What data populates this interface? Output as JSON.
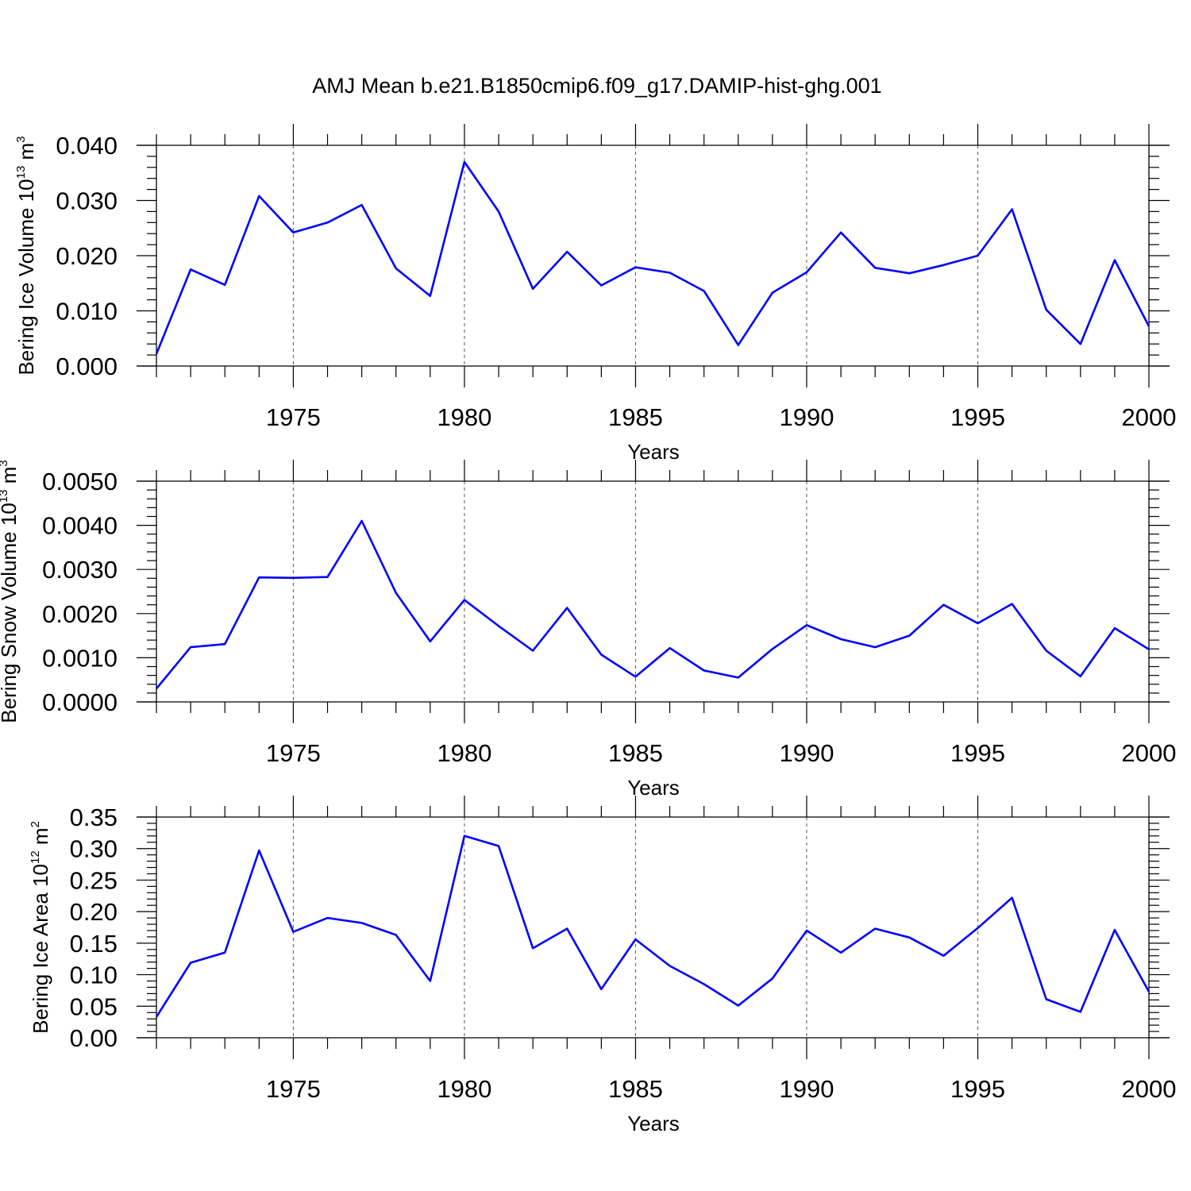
{
  "figure": {
    "title": "AMJ Mean b.e21.B1850cmip6.f09_g17.DAMIP-hist-ghg.001"
  },
  "colors": {
    "line": "#0000ff",
    "axis": "#000000",
    "grid": "#555555"
  },
  "chart_data": [
    {
      "type": "line",
      "xlabel": "Years",
      "ylabel": "Bering Ice Volume 10",
      "ylabel_exp": "13",
      "ylabel_unit": "m",
      "ylabel_unit_exp": "3",
      "x": [
        1971,
        1972,
        1973,
        1974,
        1975,
        1976,
        1977,
        1978,
        1979,
        1980,
        1981,
        1982,
        1983,
        1984,
        1985,
        1986,
        1987,
        1988,
        1989,
        1990,
        1991,
        1992,
        1993,
        1994,
        1995,
        1996,
        1997,
        1998,
        1999,
        2000
      ],
      "values": [
        0.0022,
        0.0175,
        0.0147,
        0.0308,
        0.0242,
        0.026,
        0.0292,
        0.0177,
        0.0127,
        0.037,
        0.028,
        0.014,
        0.0207,
        0.0146,
        0.0179,
        0.0169,
        0.0136,
        0.0038,
        0.0133,
        0.017,
        0.0242,
        0.0178,
        0.0168,
        0.0183,
        0.02,
        0.0284,
        0.0102,
        0.004,
        0.0192,
        0.0072
      ],
      "xlim": [
        1971,
        2000
      ],
      "ylim": [
        0,
        0.04
      ],
      "xticks": [
        "1975",
        "1980",
        "1985",
        "1990",
        "1995",
        "2000"
      ],
      "yticks": [
        "0.000",
        "0.010",
        "0.020",
        "0.030",
        "0.040"
      ],
      "grid": "vertical dashed at major x ticks"
    },
    {
      "type": "line",
      "xlabel": "Years",
      "ylabel": "Bering Snow Volume 10",
      "ylabel_exp": "13",
      "ylabel_unit": "m",
      "ylabel_unit_exp": "3",
      "x": [
        1971,
        1972,
        1973,
        1974,
        1975,
        1976,
        1977,
        1978,
        1979,
        1980,
        1981,
        1982,
        1983,
        1984,
        1985,
        1986,
        1987,
        1988,
        1989,
        1990,
        1991,
        1992,
        1993,
        1994,
        1995,
        1996,
        1997,
        1998,
        1999,
        2000
      ],
      "values": [
        0.0003,
        0.00124,
        0.00131,
        0.00282,
        0.00281,
        0.00283,
        0.0041,
        0.00247,
        0.00137,
        0.00231,
        0.00172,
        0.00116,
        0.00213,
        0.00107,
        0.00057,
        0.00122,
        0.00071,
        0.00055,
        0.0012,
        0.00174,
        0.00142,
        0.00124,
        0.0015,
        0.0022,
        0.00178,
        0.00222,
        0.00116,
        0.00058,
        0.00167,
        0.00119
      ],
      "xlim": [
        1971,
        2000
      ],
      "ylim": [
        0,
        0.005
      ],
      "xticks": [
        "1975",
        "1980",
        "1985",
        "1990",
        "1995",
        "2000"
      ],
      "yticks": [
        "0.0000",
        "0.0010",
        "0.0020",
        "0.0030",
        "0.0040",
        "0.0050"
      ],
      "grid": "vertical dashed at major x ticks"
    },
    {
      "type": "line",
      "xlabel": "Years",
      "ylabel": "Bering Ice Area 10",
      "ylabel_exp": "12",
      "ylabel_unit": "m",
      "ylabel_unit_exp": "2",
      "x": [
        1971,
        1972,
        1973,
        1974,
        1975,
        1976,
        1977,
        1978,
        1979,
        1980,
        1981,
        1982,
        1983,
        1984,
        1985,
        1986,
        1987,
        1988,
        1989,
        1990,
        1991,
        1992,
        1993,
        1994,
        1995,
        1996,
        1997,
        1998,
        1999,
        2000
      ],
      "values": [
        0.033,
        0.119,
        0.135,
        0.297,
        0.168,
        0.19,
        0.182,
        0.163,
        0.09,
        0.32,
        0.304,
        0.142,
        0.173,
        0.077,
        0.156,
        0.114,
        0.085,
        0.051,
        0.094,
        0.17,
        0.135,
        0.173,
        0.159,
        0.13,
        0.174,
        0.222,
        0.061,
        0.041,
        0.171,
        0.073
      ],
      "xlim": [
        1971,
        2000
      ],
      "ylim": [
        0,
        0.35
      ],
      "xticks": [
        "1975",
        "1980",
        "1985",
        "1990",
        "1995",
        "2000"
      ],
      "yticks": [
        "0.00",
        "0.05",
        "0.10",
        "0.15",
        "0.20",
        "0.25",
        "0.30",
        "0.35"
      ],
      "grid": "vertical dashed at major x ticks"
    }
  ]
}
